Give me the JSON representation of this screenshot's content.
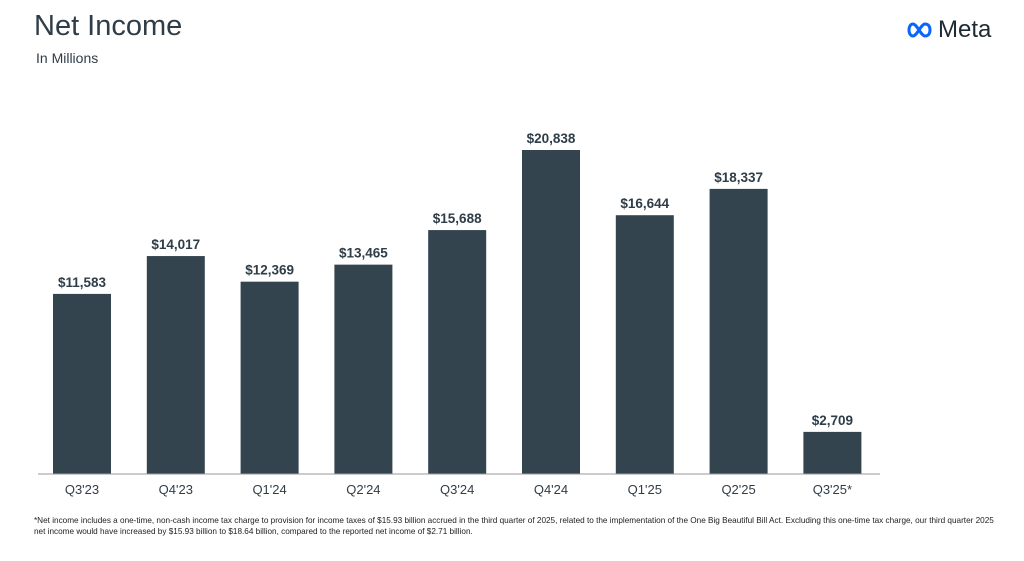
{
  "header": {
    "title": "Net Income",
    "subtitle": "In Millions",
    "logo_text": "Meta"
  },
  "chart_data": {
    "type": "bar",
    "title": "Net Income",
    "ylabel": "In Millions",
    "categories": [
      "Q3'23",
      "Q4'23",
      "Q1'24",
      "Q2'24",
      "Q3'24",
      "Q4'24",
      "Q1'25",
      "Q2'25",
      "Q3'25*"
    ],
    "values": [
      11583,
      14017,
      12369,
      13465,
      15688,
      20838,
      16644,
      18337,
      2709
    ],
    "data_labels": [
      "$11,583",
      "$14,017",
      "$12,369",
      "$13,465",
      "$15,688",
      "$20,838",
      "$16,644",
      "$18,337",
      "$2,709"
    ],
    "ylim": [
      0,
      20838
    ],
    "grid": false,
    "bar_color": "#33444f"
  },
  "footnote": "*Net income includes a one-time, non-cash income tax charge to provision for income taxes of $15.93 billion accrued in the third quarter of 2025, related to the implementation of the One Big Beautiful Bill Act. Excluding this one-time tax charge, our third quarter 2025 net  income would have increased by $15.93 billion to $18.64 billion, compared to the reported net income of $2.71 billion."
}
